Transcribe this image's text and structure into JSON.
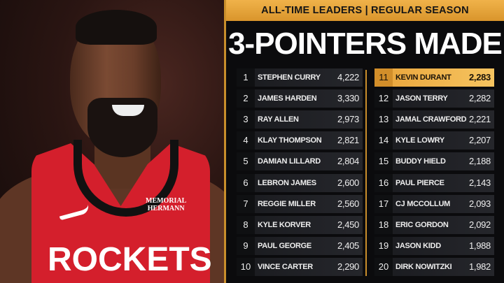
{
  "banner": "ALL-TIME LEADERS | REGULAR SEASON",
  "title": "3-POINTERS MADE",
  "photo": {
    "jersey_text": "ROCKETS",
    "sponsor_line1": "MEMORIAL",
    "sponsor_line2": "HERMANN"
  },
  "highlight_color": "#f0b24a",
  "leaders": [
    {
      "rank": "1",
      "name": "STEPHEN CURRY",
      "value": "4,222"
    },
    {
      "rank": "2",
      "name": "JAMES HARDEN",
      "value": "3,330"
    },
    {
      "rank": "3",
      "name": "RAY ALLEN",
      "value": "2,973"
    },
    {
      "rank": "4",
      "name": "KLAY THOMPSON",
      "value": "2,821"
    },
    {
      "rank": "5",
      "name": "DAMIAN LILLARD",
      "value": "2,804"
    },
    {
      "rank": "6",
      "name": "LEBRON JAMES",
      "value": "2,600"
    },
    {
      "rank": "7",
      "name": "REGGIE MILLER",
      "value": "2,560"
    },
    {
      "rank": "8",
      "name": "KYLE KORVER",
      "value": "2,450"
    },
    {
      "rank": "9",
      "name": "PAUL GEORGE",
      "value": "2,405"
    },
    {
      "rank": "10",
      "name": "VINCE CARTER",
      "value": "2,290"
    },
    {
      "rank": "11",
      "name": "KEVIN DURANT",
      "value": "2,283",
      "highlighted": true
    },
    {
      "rank": "12",
      "name": "JASON TERRY",
      "value": "2,282"
    },
    {
      "rank": "13",
      "name": "JAMAL CRAWFORD",
      "value": "2,221"
    },
    {
      "rank": "14",
      "name": "KYLE LOWRY",
      "value": "2,207"
    },
    {
      "rank": "15",
      "name": "BUDDY HIELD",
      "value": "2,188"
    },
    {
      "rank": "16",
      "name": "PAUL PIERCE",
      "value": "2,143"
    },
    {
      "rank": "17",
      "name": "CJ MCCOLLUM",
      "value": "2,093"
    },
    {
      "rank": "18",
      "name": "ERIC GORDON",
      "value": "2,092"
    },
    {
      "rank": "19",
      "name": "JASON KIDD",
      "value": "1,988"
    },
    {
      "rank": "20",
      "name": "DIRK NOWITZKI",
      "value": "1,982"
    }
  ]
}
